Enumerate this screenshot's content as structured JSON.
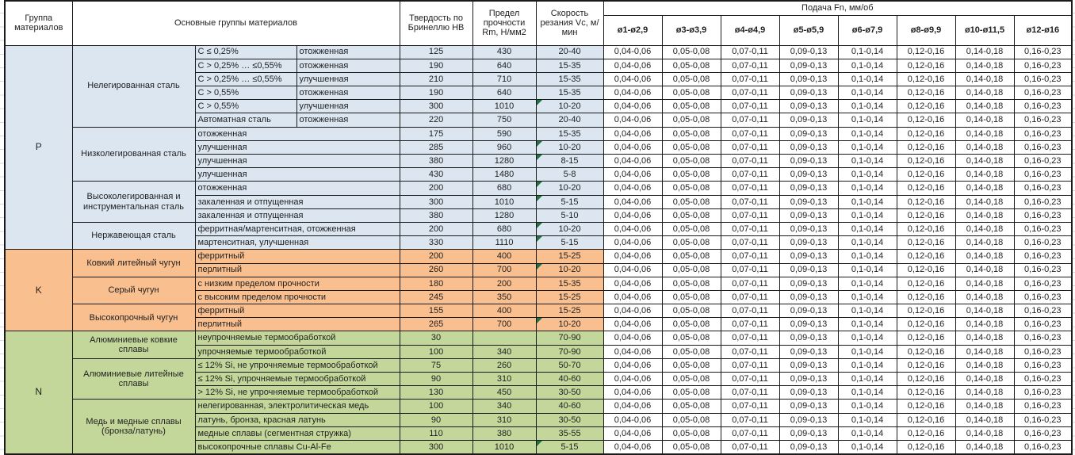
{
  "header": {
    "col_group": "Группа материалов",
    "col_main_groups": "Основные группы материалов",
    "col_hardness": "Твердость по Бринеллю HB",
    "col_strength": "Предел прочности Rm, Н/мм2",
    "col_speed": "Скорость резания Vc, м/мин",
    "feed_title": "Подача Fn, мм/об",
    "feed_cols": [
      "ø1-ø2,9",
      "ø3-ø3,9",
      "ø4-ø4,9",
      "ø5-ø5,9",
      "ø6-ø7,9",
      "ø8-ø9,9",
      "ø10-ø11,5",
      "ø12-ø16"
    ]
  },
  "feed_values": [
    "0,04-0,06",
    "0,05-0,08",
    "0,07-0,11",
    "0,09-0,13",
    "0,1-0,14",
    "0,12-0,16",
    "0,14-0,18",
    "0,16-0,23"
  ],
  "colors": {
    "group_p": "#dce6f1",
    "group_k": "#fabf8f",
    "group_n": "#c4d79b",
    "marker": "#217346"
  },
  "groups": [
    {
      "code": "P",
      "color_key": "group_p",
      "families": [
        {
          "name": "Нелегированная сталь",
          "rows": [
            {
              "sub": "C ≤ 0,25%",
              "state": "отожженная",
              "hb": "125",
              "rm": "430",
              "vc": "20-40",
              "marker": false
            },
            {
              "sub": "C > 0,25% … ≤0,55%",
              "state": "отожженная",
              "hb": "190",
              "rm": "640",
              "vc": "15-35",
              "marker": false
            },
            {
              "sub": "C > 0,25% … ≤0,55%",
              "state": "улучшенная",
              "hb": "210",
              "rm": "710",
              "vc": "15-35",
              "marker": false
            },
            {
              "sub": "C > 0,55%",
              "state": "отожженная",
              "hb": "190",
              "rm": "640",
              "vc": "15-35",
              "marker": false
            },
            {
              "sub": "C > 0,55%",
              "state": "улучшенная",
              "hb": "300",
              "rm": "1010",
              "vc": "10-20",
              "marker": true
            },
            {
              "sub": "Автоматная сталь",
              "state": "отожженная",
              "hb": "220",
              "rm": "750",
              "vc": "20-40",
              "marker": false
            }
          ]
        },
        {
          "name": "Низколегированная сталь",
          "rows": [
            {
              "sub": "отожженная",
              "state": null,
              "hb": "175",
              "rm": "590",
              "vc": "15-35",
              "marker": false
            },
            {
              "sub": "улучшенная",
              "state": null,
              "hb": "285",
              "rm": "960",
              "vc": "10-20",
              "marker": true
            },
            {
              "sub": "улучшенная",
              "state": null,
              "hb": "380",
              "rm": "1280",
              "vc": "8-15",
              "marker": true
            },
            {
              "sub": "улучшенная",
              "state": null,
              "hb": "430",
              "rm": "1480",
              "vc": "5-8",
              "marker": false
            }
          ]
        },
        {
          "name": "Высоколегированная и инструментальная сталь",
          "rows": [
            {
              "sub": "отожженная",
              "state": null,
              "hb": "200",
              "rm": "680",
              "vc": "10-20",
              "marker": true
            },
            {
              "sub": "закаленная и отпущенная",
              "state": null,
              "hb": "300",
              "rm": "1010",
              "vc": "5-15",
              "marker": true
            },
            {
              "sub": "закаленная и отпущенная",
              "state": null,
              "hb": "380",
              "rm": "1280",
              "vc": "5-10",
              "marker": false
            }
          ]
        },
        {
          "name": "Нержавеющая сталь",
          "rows": [
            {
              "sub": "ферритная/мартенситная, отожженная",
              "state": null,
              "hb": "200",
              "rm": "680",
              "vc": "10-20",
              "marker": true
            },
            {
              "sub": "мартенситная, улучшенная",
              "state": null,
              "hb": "330",
              "rm": "1110",
              "vc": "5-15",
              "marker": true
            }
          ]
        }
      ]
    },
    {
      "code": "K",
      "color_key": "group_k",
      "families": [
        {
          "name": "Ковкий литейный чугун",
          "rows": [
            {
              "sub": "ферритный",
              "state": null,
              "hb": "200",
              "rm": "400",
              "vc": "15-25",
              "marker": false
            },
            {
              "sub": "перлитный",
              "state": null,
              "hb": "260",
              "rm": "700",
              "vc": "10-20",
              "marker": true
            }
          ]
        },
        {
          "name": "Серый чугун",
          "rows": [
            {
              "sub": "с низким пределом прочности",
              "state": null,
              "hb": "180",
              "rm": "200",
              "vc": "15-35",
              "marker": false
            },
            {
              "sub": "с высоким пределом прочности",
              "state": null,
              "hb": "245",
              "rm": "350",
              "vc": "15-25",
              "marker": false
            }
          ]
        },
        {
          "name": "Высокопрочный чугун",
          "rows": [
            {
              "sub": "ферритный",
              "state": null,
              "hb": "155",
              "rm": "400",
              "vc": "15-25",
              "marker": false
            },
            {
              "sub": "перлитный",
              "state": null,
              "hb": "265",
              "rm": "700",
              "vc": "10-20",
              "marker": true
            }
          ]
        }
      ]
    },
    {
      "code": "N",
      "color_key": "group_n",
      "families": [
        {
          "name": "Алюминиевые ковкие сплавы",
          "rows": [
            {
              "sub": "неупрочняемые термообработкой",
              "state": null,
              "hb": "30",
              "rm": "",
              "vc": "70-90",
              "marker": false
            },
            {
              "sub": "упрочняемые термообработкой",
              "state": null,
              "hb": "100",
              "rm": "340",
              "vc": "70-90",
              "marker": false
            }
          ]
        },
        {
          "name": "Алюминиевые литейные сплавы",
          "rows": [
            {
              "sub": "≤ 12% Si, не упрочняемые термообработкой",
              "state": null,
              "hb": "75",
              "rm": "260",
              "vc": "50-70",
              "marker": false
            },
            {
              "sub": "≤ 12% Si, упрочняемые термообработкой",
              "state": null,
              "hb": "90",
              "rm": "310",
              "vc": "40-60",
              "marker": false
            },
            {
              "sub": "> 12% Si, не упрочняемые термообработкой",
              "state": null,
              "hb": "130",
              "rm": "450",
              "vc": "30-50",
              "marker": false
            }
          ]
        },
        {
          "name": "Медь и медные сплавы (бронза/латунь)",
          "rows": [
            {
              "sub": "нелегированная, электролитическая медь",
              "state": null,
              "hb": "100",
              "rm": "340",
              "vc": "40-60",
              "marker": false
            },
            {
              "sub": "латунь, бронза, красная латунь",
              "state": null,
              "hb": "90",
              "rm": "310",
              "vc": "30-50",
              "marker": false
            },
            {
              "sub": "медные сплавы (сегментная стружка)",
              "state": null,
              "hb": "110",
              "rm": "380",
              "vc": "35-55",
              "marker": false
            },
            {
              "sub": "высокопрочные сплавы Cu-Al-Fe",
              "state": null,
              "hb": "300",
              "rm": "1010",
              "vc": "5-15",
              "marker": true
            }
          ]
        }
      ]
    }
  ]
}
